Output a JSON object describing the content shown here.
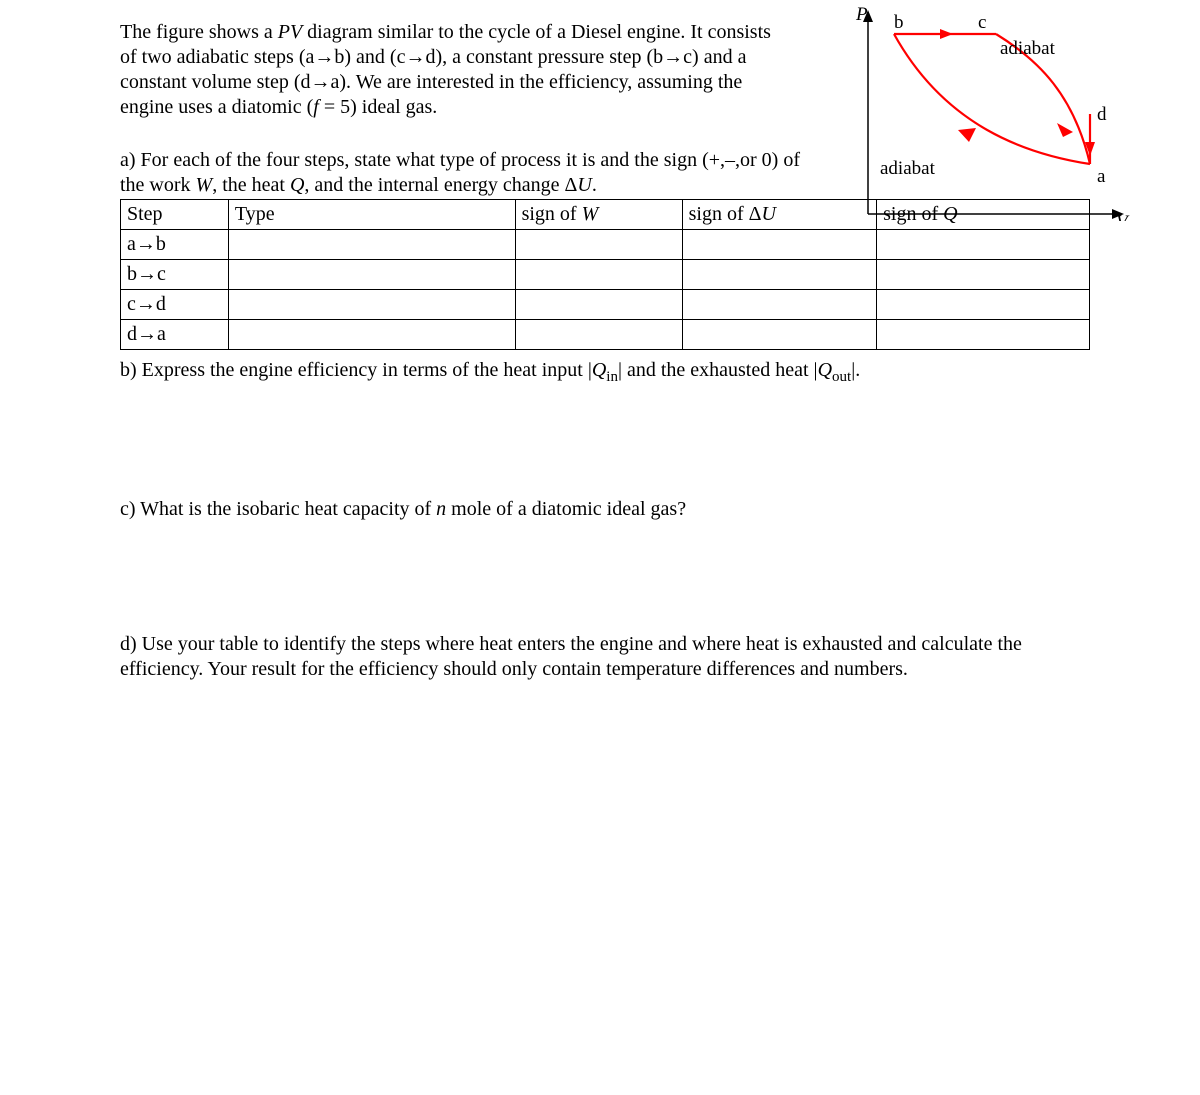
{
  "intro_html": "The figure shows a <span class='ital'>PV</span> diagram similar to the cycle of a Diesel engine. It consists of two adiabatic steps (a→b) and (c→d), a constant pressure step (b→c) and a constant volume step (d→a). We are interested in the efficiency, assuming the engine uses a diatomic (<span class='ital'>f</span> = 5) ideal gas.",
  "part_a_html": "a) For each of the four steps, state what type of process it is and the sign (+,–,or 0) of the work <span class='ital'>W</span>, the heat <span class='ital'>Q</span>, and the internal energy change Δ<span class='ital'>U</span>.",
  "table": {
    "headers": {
      "step": "Step",
      "type": "Type",
      "w_html": "sign of <span class='ital'>W</span>",
      "du_html": "sign of Δ<span class='ital'>U</span>",
      "q_html": "sign of <span class='ital'>Q</span>"
    },
    "rows": [
      {
        "step": "a→b"
      },
      {
        "step": "b→c"
      },
      {
        "step": "c→d"
      },
      {
        "step": "d→a"
      }
    ]
  },
  "part_b_html": "b) Express the engine efficiency in terms of the heat input |<span class='ital'>Q</span><sub>in</sub>| and the exhausted heat |<span class='ital'>Q</span><sub>out</sub>|.",
  "part_c_html": "c) What is the isobaric heat capacity of <span class='ital'>n</span> mole of a diatomic ideal gas?",
  "part_d_html": "d) Use your table to identify the steps where heat enters the engine and where heat is exhausted and calculate the efficiency. Your result for the efficiency should only contain temperature differences and numbers.",
  "diagram": {
    "axis_color": "#000000",
    "curve_color": "#ff0000",
    "curve_width": 2.2,
    "arrow_fill": "#ff0000",
    "labels": {
      "P": "P",
      "V": "V",
      "a": "a",
      "b": "b",
      "c": "c",
      "d": "d",
      "adiabat1": "adiabat",
      "adiabat2": "adiabat"
    },
    "label_color": "#000000",
    "label_fontsize": 19
  }
}
